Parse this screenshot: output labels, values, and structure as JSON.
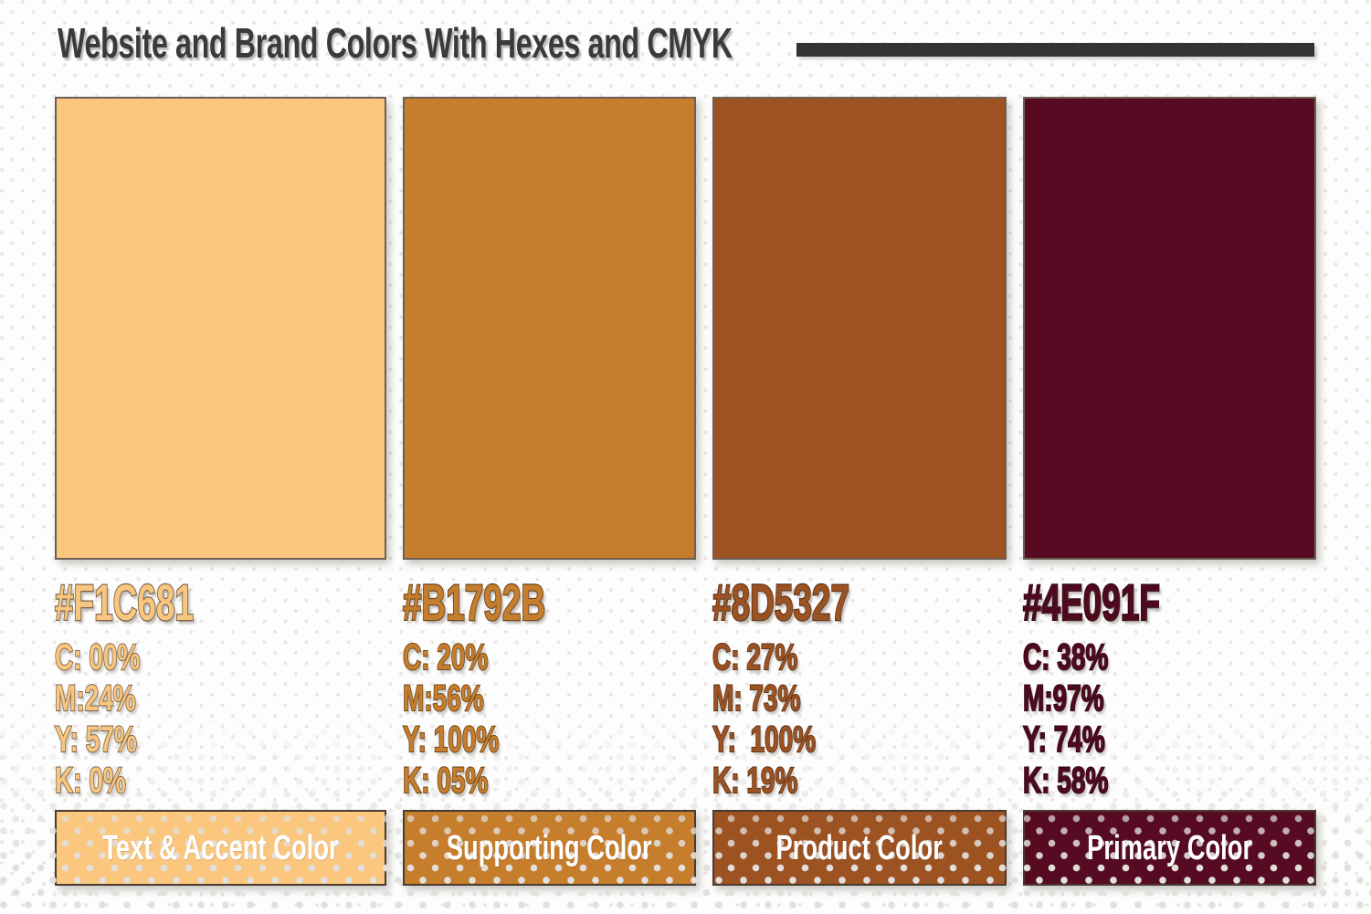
{
  "header": {
    "title": "Website and Brand Colors With Hexes and CMYK"
  },
  "palette": [
    {
      "hex_code": "#F1C681",
      "swatch_color": "#FBC67E",
      "ink_color": "#F8C67F",
      "stroke_color": "#7C6347",
      "cmyk_lines": [
        "C: 00%",
        "M:24%",
        "Y: 57%",
        "K: 0%"
      ],
      "role_label": "Text & Accent Color"
    },
    {
      "hex_code": "#B1792B",
      "swatch_color": "#C67D2C",
      "ink_color": "#C67D2C",
      "stroke_color": "#6B4315",
      "cmyk_lines": [
        "C: 20%",
        "M:56%",
        "Y: 100%",
        "K: 05%"
      ],
      "role_label": "Supporting Color"
    },
    {
      "hex_code": "#8D5327",
      "swatch_color": "#9D5222",
      "ink_color": "#9D5222",
      "stroke_color": "#5C2F12",
      "cmyk_lines": [
        "C: 27%",
        "M: 73%",
        "Y:  100%",
        "K: 19%"
      ],
      "role_label": "Product Color"
    },
    {
      "hex_code": "#4E091F",
      "swatch_color": "#570B22",
      "ink_color": "#4E091F",
      "stroke_color": "#330514",
      "cmyk_lines": [
        "C: 38%",
        "M:97%",
        "Y: 74%",
        "K: 58%"
      ],
      "role_label": "Primary Color"
    }
  ]
}
